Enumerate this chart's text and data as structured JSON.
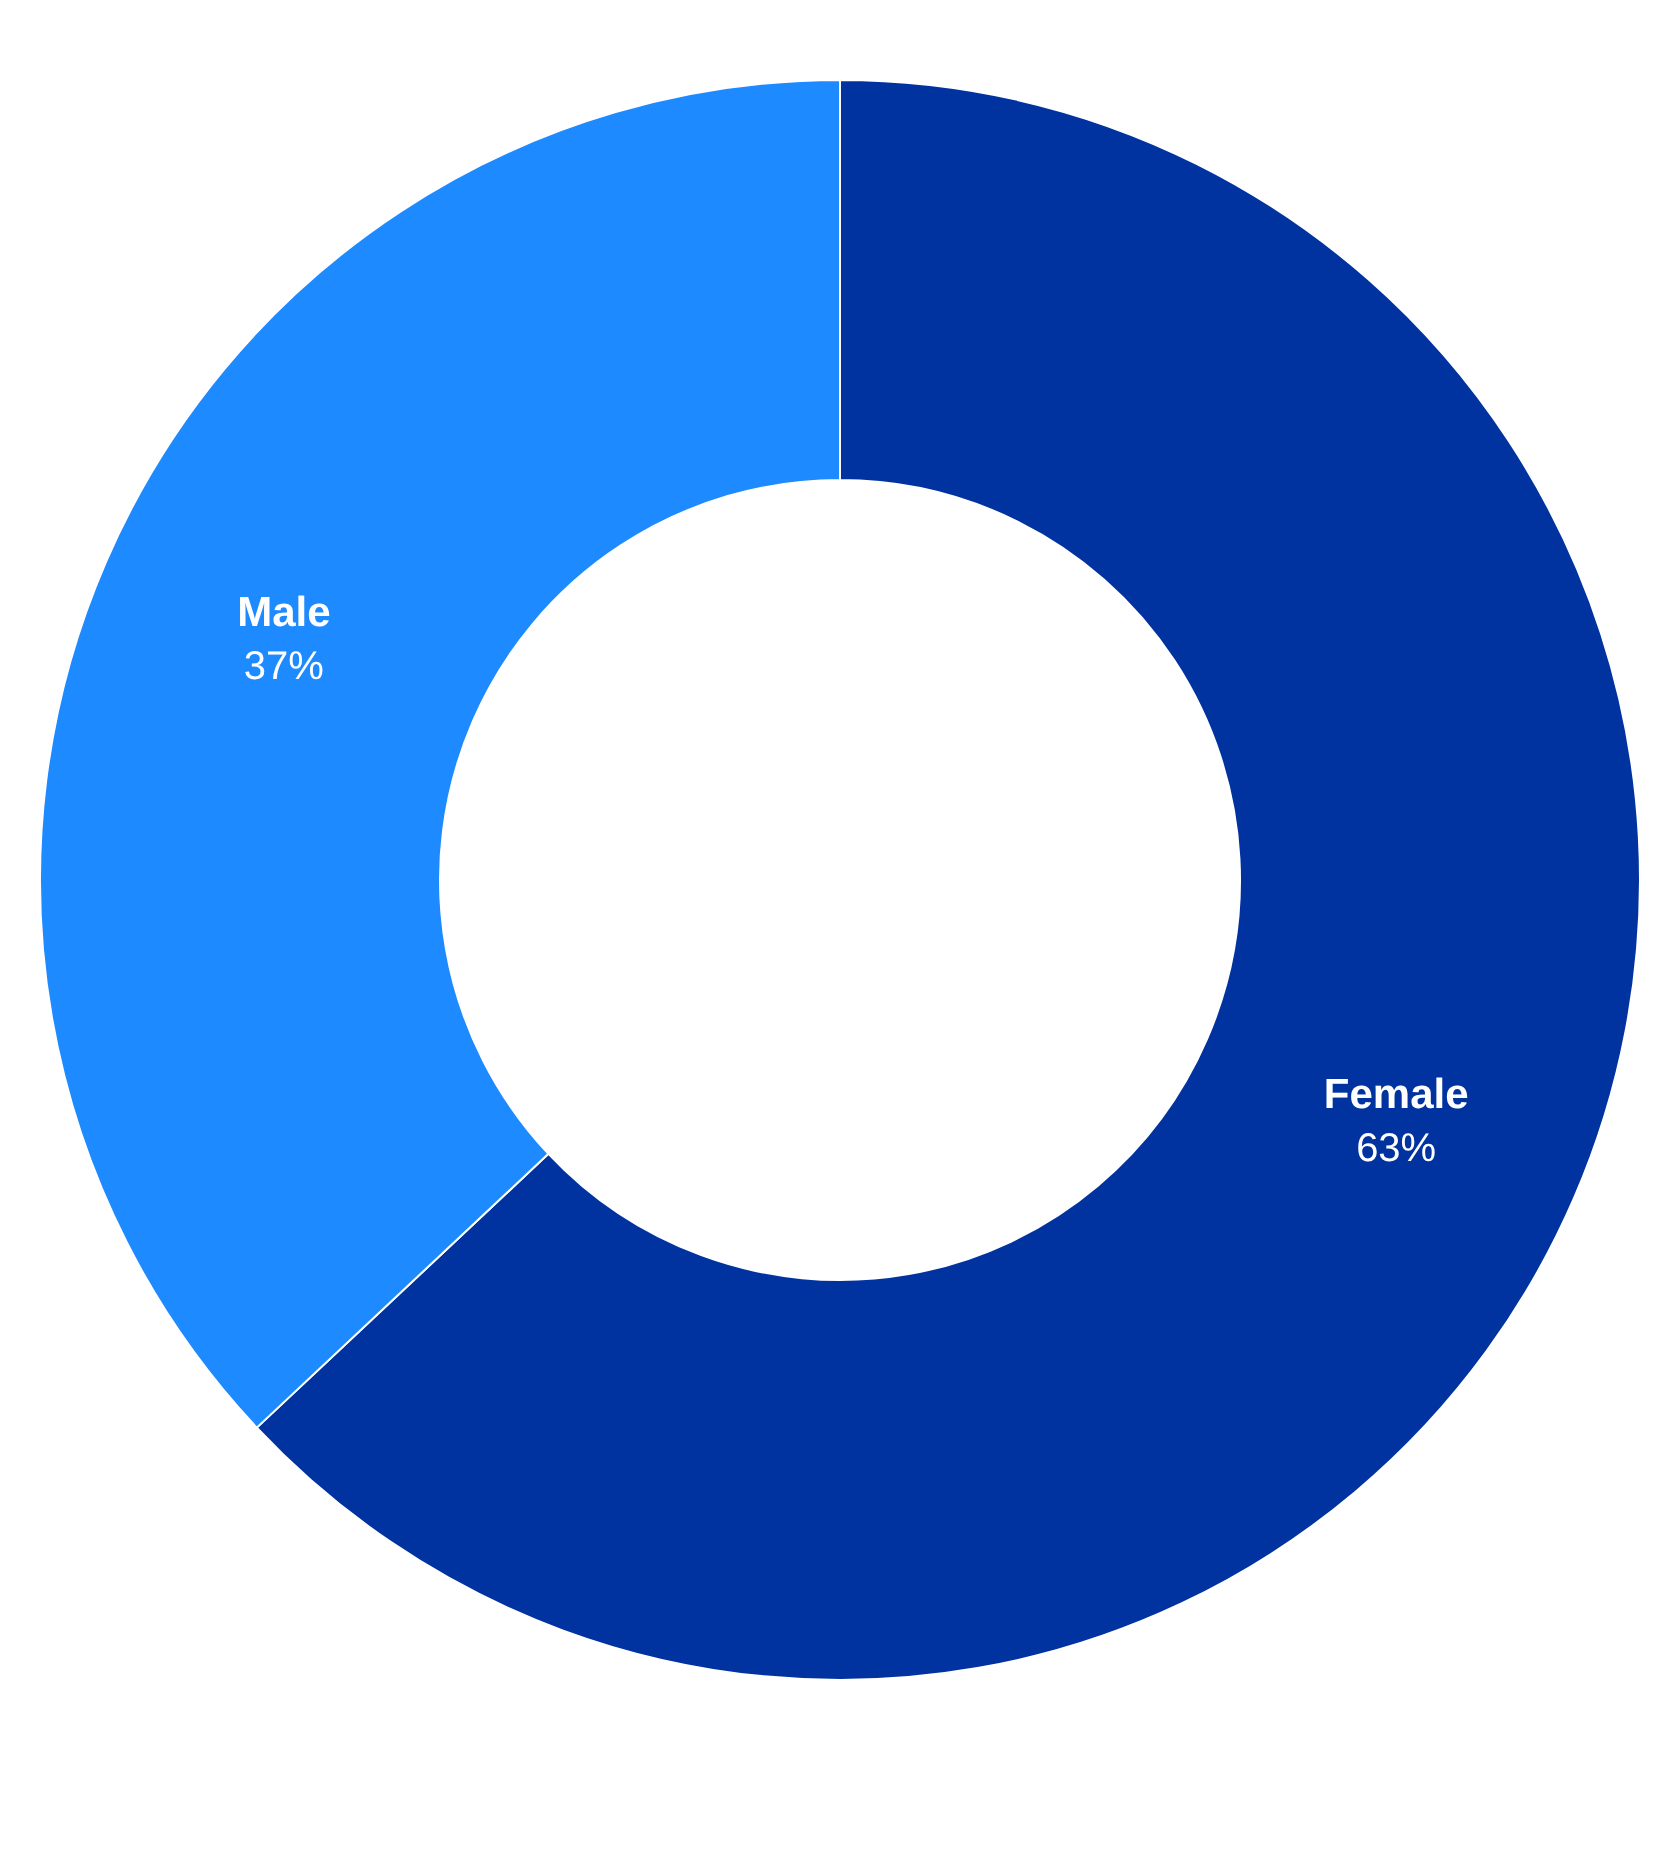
{
  "chart_data": {
    "type": "donut",
    "categories": [
      "Female",
      "Male"
    ],
    "values": [
      63,
      37
    ],
    "colors": [
      "#0033a0",
      "#1e8aff"
    ],
    "value_labels": [
      "63%",
      "37%"
    ],
    "legend": false
  }
}
